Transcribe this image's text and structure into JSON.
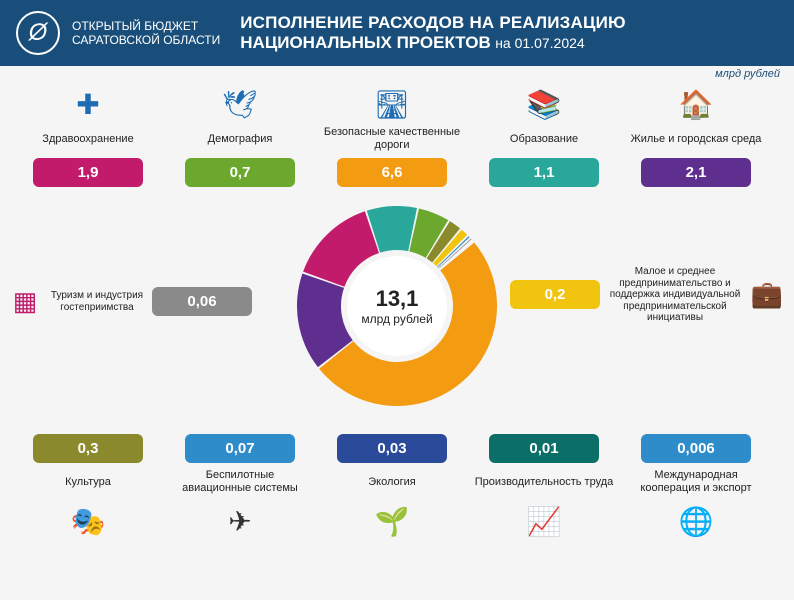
{
  "header": {
    "logo_text_1": "ОТКРЫТЫЙ БЮДЖЕТ",
    "logo_text_2": "САРАТОВСКОЙ ОБЛАСТИ",
    "title_line1": "ИСПОЛНЕНИЕ РАСХОДОВ НА РЕАЛИЗАЦИЮ",
    "title_line2": "НАЦИОНАЛЬНЫХ ПРОЕКТОВ",
    "date_prefix": "на",
    "date": "01.07.2024"
  },
  "unit_label": "млрд рублей",
  "center": {
    "value": "13,1",
    "unit": "млрд рублей"
  },
  "colors": {
    "header_bg": "#1a4e7a"
  },
  "top_row": [
    {
      "id": "health",
      "label": "Здравоохранение",
      "value": "1,9",
      "color": "#c31b6c",
      "icon": "✚",
      "icon_color": "#1e6db3"
    },
    {
      "id": "demography",
      "label": "Демография",
      "value": "0,7",
      "color": "#6ca82d",
      "icon": "🕊",
      "icon_color": "#1e6db3"
    },
    {
      "id": "roads",
      "label": "Безопасные качественные дороги",
      "value": "6,6",
      "color": "#f39c12",
      "icon": "🛣",
      "icon_color": "#1e6db3"
    },
    {
      "id": "education",
      "label": "Образование",
      "value": "1,1",
      "color": "#2aa79b",
      "icon": "📚",
      "icon_color": "#1e6db3"
    },
    {
      "id": "housing",
      "label": "Жилье и городская среда",
      "value": "2,1",
      "color": "#5e2f8e",
      "icon": "🏠",
      "icon_color": "#1e6db3"
    }
  ],
  "mid_left": {
    "id": "tourism",
    "label": "Туризм и индустрия гостеприимства",
    "value": "0,06",
    "color": "#8a8a8a",
    "icon": "▦",
    "icon_color": "#c31b6c"
  },
  "mid_right": {
    "id": "sme",
    "label": "Малое и среднее предпринимательство и поддержка индивидуальной предпринимательской инициативы",
    "value": "0,2",
    "color": "#f1c40f",
    "icon": "💼",
    "icon_color": "#1e6db3"
  },
  "bottom_row": [
    {
      "id": "culture",
      "label": "Культура",
      "value": "0,3",
      "color": "#8a8a2d",
      "icon": "🎭",
      "icon_color": "#1e6db3"
    },
    {
      "id": "drones",
      "label": "Беспилотные авиационные системы",
      "value": "0,07",
      "color": "#2d8cc9",
      "icon": "✈",
      "icon_color": "#333"
    },
    {
      "id": "ecology",
      "label": "Экология",
      "value": "0,03",
      "color": "#2b4a9a",
      "icon": "🌱",
      "icon_color": "#c0392b"
    },
    {
      "id": "labor",
      "label": "Производительность труда",
      "value": "0,01",
      "color": "#0b6e67",
      "icon": "📈",
      "icon_color": "#c0392b"
    },
    {
      "id": "export",
      "label": "Международная кооперация и экспорт",
      "value": "0,006",
      "color": "#2d8cc9",
      "icon": "🌐",
      "icon_color": "#c0392b"
    }
  ],
  "donut": {
    "type": "donut",
    "radius": 100,
    "inner_radius": 56,
    "background": "#f5f5f5",
    "slices": [
      {
        "name": "roads",
        "value": 6.6,
        "color": "#f39c12"
      },
      {
        "name": "housing",
        "value": 2.1,
        "color": "#5e2f8e"
      },
      {
        "name": "health",
        "value": 1.9,
        "color": "#c31b6c"
      },
      {
        "name": "education",
        "value": 1.1,
        "color": "#2aa79b"
      },
      {
        "name": "demography",
        "value": 0.7,
        "color": "#6ca82d"
      },
      {
        "name": "culture",
        "value": 0.3,
        "color": "#8a8a2d"
      },
      {
        "name": "sme",
        "value": 0.2,
        "color": "#f1c40f"
      },
      {
        "name": "drones",
        "value": 0.07,
        "color": "#2d8cc9"
      },
      {
        "name": "tourism",
        "value": 0.06,
        "color": "#8a8a8a"
      },
      {
        "name": "ecology",
        "value": 0.03,
        "color": "#2b4a9a"
      },
      {
        "name": "labor",
        "value": 0.01,
        "color": "#0b6e67"
      },
      {
        "name": "export",
        "value": 0.006,
        "color": "#2d8cc9"
      }
    ],
    "start_angle_deg": -40
  }
}
